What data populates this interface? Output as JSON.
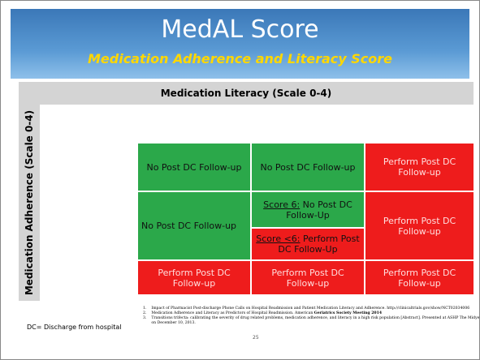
{
  "header": {
    "title": "MedAL Score",
    "subtitle": "Medication Adherence and Literacy Score"
  },
  "table": {
    "column_header": "Medication Literacy (Scale 0-4)",
    "row_header": "Medication Adherence (Scale 0-4)",
    "cells": [
      {
        "text": "No Post DC Follow-up"
      },
      {
        "text": "No Post DC Follow-up"
      },
      {
        "text": "Perform Post DC Follow-up"
      },
      {
        "text": "No Post DC Follow-up"
      },
      {
        "label": "Score 6:",
        "text": " No Post DC Follow-Up"
      },
      {
        "label": "Score <6:",
        "text": " Perform Post DC Follow-Up"
      },
      {
        "text": "Perform Post DC Follow-up"
      },
      {
        "text": "Perform Post DC Follow-up"
      },
      {
        "text": "Perform Post DC Follow-up"
      },
      {
        "text": "Perform Post DC Follow-up"
      }
    ]
  },
  "footer": {
    "note": "DC= Discharge from hospital",
    "references": [
      {
        "number": "1.",
        "text": "Impact of Pharmacist Post-discharge Phone Calls on Hospital Readmission and Patient Medication Literacy and Adherence. http://clinicaltrials.gov/show/NCT02034006"
      },
      {
        "number": "2.",
        "text": "Medication Adherence and Literacy as Predictors of Hospital Readmission. American ",
        "bold": "Geriatrics Society Meeting 2014"
      },
      {
        "number": "3.",
        "text": "Transitions trifecta: calibrating the severity of drug related problems, medication adherence, and literacy in a high risk population [Abstract]. Presented at ASHP The Midyear on December 10, 2013."
      }
    ],
    "slide_number": "25"
  }
}
